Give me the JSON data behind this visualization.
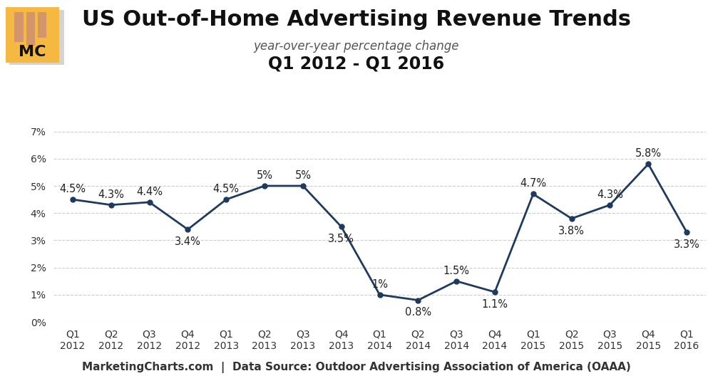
{
  "title": "US Out-of-Home Advertising Revenue Trends",
  "subtitle": "year-over-year percentage change",
  "subtitle2": "Q1 2012 - Q1 2016",
  "categories": [
    "Q1\n2012",
    "Q2\n2012",
    "Q3\n2012",
    "Q4\n2012",
    "Q1\n2013",
    "Q2\n2013",
    "Q3\n2013",
    "Q4\n2013",
    "Q1\n2014",
    "Q2\n2014",
    "Q3\n2014",
    "Q4\n2014",
    "Q1\n2015",
    "Q2\n2015",
    "Q3\n2015",
    "Q4\n2015",
    "Q1\n2016"
  ],
  "values": [
    4.5,
    4.3,
    4.4,
    3.4,
    4.5,
    5.0,
    5.0,
    3.5,
    1.0,
    0.8,
    1.5,
    1.1,
    4.7,
    3.8,
    4.3,
    5.8,
    3.3
  ],
  "labels": [
    "4.5%",
    "4.3%",
    "4.4%",
    "3.4%",
    "4.5%",
    "5%",
    "5%",
    "3.5%",
    "1%",
    "0.8%",
    "1.5%",
    "1.1%",
    "4.7%",
    "3.8%",
    "4.3%",
    "5.8%",
    "3.3%"
  ],
  "line_color": "#1e3a5f",
  "marker_color": "#1e3a5f",
  "bg_color": "#ffffff",
  "plot_bg_color": "#ffffff",
  "grid_color": "#cccccc",
  "footer_bg": "#c8c8c8",
  "footer_text": "MarketingCharts.com  |  Data Source: Outdoor Advertising Association of America (OAAA)",
  "ylim": [
    0,
    7
  ],
  "yticks": [
    0,
    1,
    2,
    3,
    4,
    5,
    6,
    7
  ],
  "mc_logo_bg": "#f5b942",
  "mc_logo_bar1": "#c8a87a",
  "mc_logo_bar2": "#c8a87a",
  "mc_logo_bar3": "#c8a87a",
  "title_fontsize": 22,
  "subtitle_fontsize": 12,
  "subtitle2_fontsize": 17,
  "label_fontsize": 10.5,
  "tick_fontsize": 10,
  "footer_fontsize": 11,
  "label_offsets": [
    0.38,
    0.38,
    0.38,
    -0.45,
    0.38,
    0.38,
    0.38,
    -0.45,
    0.38,
    -0.45,
    0.38,
    -0.45,
    0.38,
    -0.45,
    0.38,
    0.38,
    -0.45
  ]
}
